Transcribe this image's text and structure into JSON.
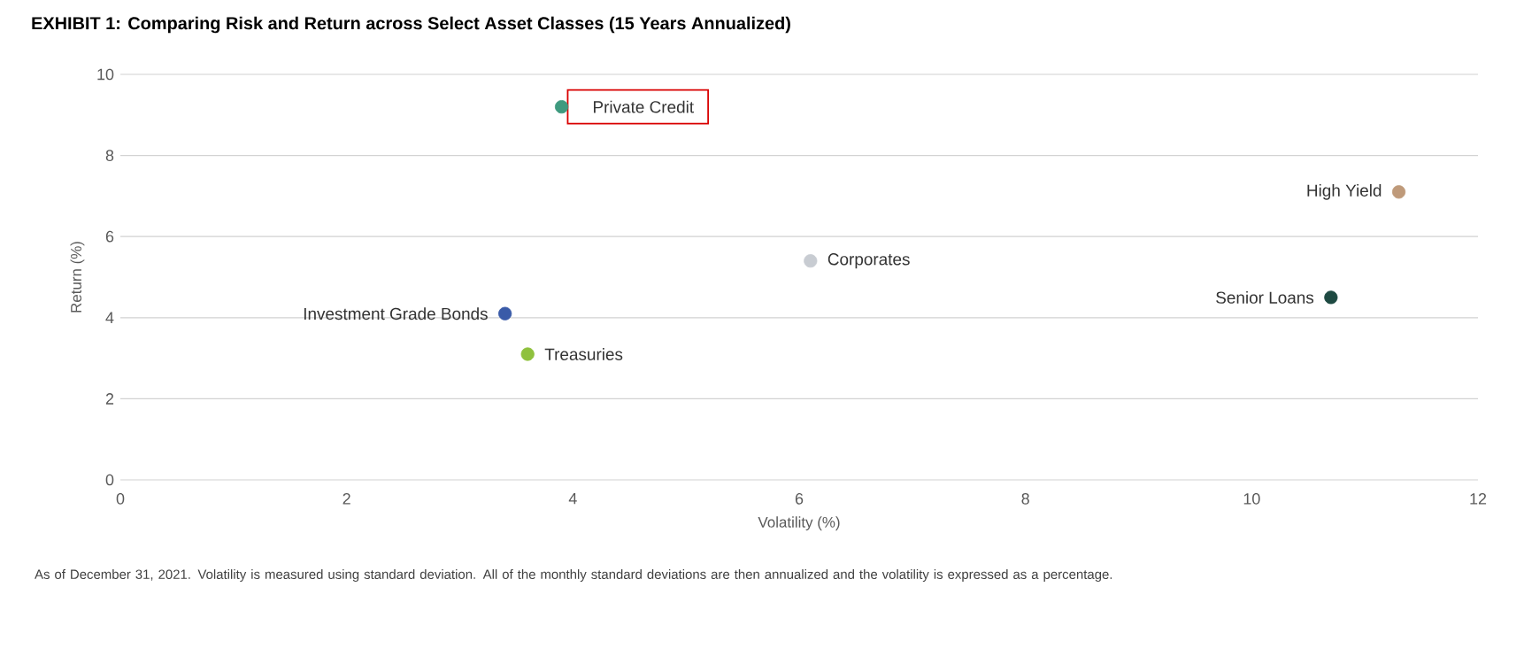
{
  "chart_data": {
    "type": "scatter",
    "title": "EXHIBIT 1: Comparing Risk and Return across Select Asset Classes (15 Years Annualized)",
    "xlabel": "Volatility (%)",
    "ylabel": "Return (%)",
    "xlim": [
      0,
      12
    ],
    "ylim": [
      0,
      10
    ],
    "xticks": [
      0,
      2,
      4,
      6,
      8,
      10,
      12
    ],
    "yticks": [
      0,
      2,
      4,
      6,
      8,
      10
    ],
    "grid": "y",
    "marker": "circle",
    "series": [
      {
        "name": "Private Credit",
        "color": "#3f9a7f",
        "x": [
          3.9
        ],
        "values": [
          9.2
        ]
      },
      {
        "name": "High Yield",
        "color": "#bf9a7a",
        "x": [
          11.3
        ],
        "values": [
          7.1
        ]
      },
      {
        "name": "Corporates",
        "color": "#c8ccd2",
        "x": [
          6.1
        ],
        "values": [
          5.4
        ]
      },
      {
        "name": "Senior Loans",
        "color": "#1e4a42",
        "x": [
          10.7
        ],
        "values": [
          4.5
        ]
      },
      {
        "name": "Investment Grade Bonds",
        "color": "#3a5ba8",
        "x": [
          3.4
        ],
        "values": [
          4.1
        ]
      },
      {
        "name": "Treasuries",
        "color": "#8fc13e",
        "x": [
          3.6
        ],
        "values": [
          3.1
        ]
      }
    ],
    "annotations": [
      "As of December 31, 2021. Volatility is measured using standard deviation. All of the monthly standard deviations are then annualized and the volatility is expressed as a percentage."
    ]
  }
}
